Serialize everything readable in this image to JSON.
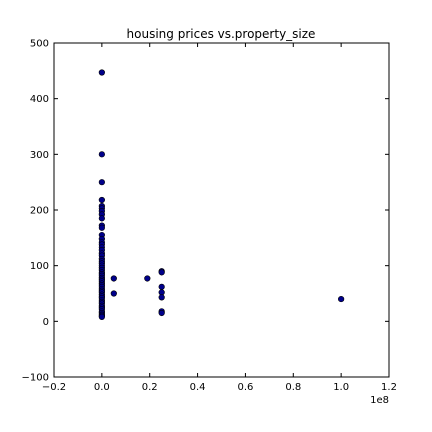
{
  "chart_data": {
    "type": "scatter",
    "title": "housing prices vs.property_size",
    "xlabel": "",
    "ylabel": "",
    "x_offset_label": "1e8",
    "xlim": [
      -0.2,
      1.2
    ],
    "ylim": [
      -100,
      500
    ],
    "x_ticks": [
      -0.2,
      0.0,
      0.2,
      0.4,
      0.6,
      0.8,
      1.0,
      1.2
    ],
    "x_tick_labels": [
      "−0.2",
      "0.0",
      "0.2",
      "0.4",
      "0.6",
      "0.8",
      "1.0",
      "1.2"
    ],
    "y_ticks": [
      -100,
      0,
      100,
      200,
      300,
      400,
      500
    ],
    "y_tick_labels": [
      "−100",
      "0",
      "100",
      "200",
      "300",
      "400",
      "500"
    ],
    "grid": false,
    "marker_color": "#00008b",
    "series": [
      {
        "points": [
          [
            0.0,
            447
          ],
          [
            0.0,
            300
          ],
          [
            0.0,
            250
          ],
          [
            0.0,
            218
          ],
          [
            0.0,
            207
          ],
          [
            0.0,
            203
          ],
          [
            0.0,
            198
          ],
          [
            0.0,
            192
          ],
          [
            0.0,
            185
          ],
          [
            0.0,
            172
          ],
          [
            0.0,
            168
          ],
          [
            0.0,
            155
          ],
          [
            0.0,
            148
          ],
          [
            0.0,
            142
          ],
          [
            0.0,
            138
          ],
          [
            0.0,
            133
          ],
          [
            0.0,
            128
          ],
          [
            0.0,
            122
          ],
          [
            0.0,
            118
          ],
          [
            0.0,
            112
          ],
          [
            0.0,
            108
          ],
          [
            0.0,
            104
          ],
          [
            0.0,
            100
          ],
          [
            0.0,
            96
          ],
          [
            0.0,
            92
          ],
          [
            0.0,
            88
          ],
          [
            0.0,
            85
          ],
          [
            0.0,
            82
          ],
          [
            0.0,
            78
          ],
          [
            0.0,
            75
          ],
          [
            0.0,
            72
          ],
          [
            0.0,
            68
          ],
          [
            0.0,
            65
          ],
          [
            0.0,
            62
          ],
          [
            0.0,
            58
          ],
          [
            0.0,
            55
          ],
          [
            0.0,
            52
          ],
          [
            0.0,
            48
          ],
          [
            0.0,
            45
          ],
          [
            0.0,
            42
          ],
          [
            0.0,
            38
          ],
          [
            0.0,
            35
          ],
          [
            0.0,
            32
          ],
          [
            0.0,
            28
          ],
          [
            0.0,
            25
          ],
          [
            0.0,
            22
          ],
          [
            0.0,
            18
          ],
          [
            0.0,
            15
          ],
          [
            0.0,
            12
          ],
          [
            0.0,
            10
          ],
          [
            0.0,
            8
          ],
          [
            0.05,
            77
          ],
          [
            0.05,
            50
          ],
          [
            0.19,
            77
          ],
          [
            0.25,
            90
          ],
          [
            0.25,
            88
          ],
          [
            0.25,
            62
          ],
          [
            0.25,
            52
          ],
          [
            0.25,
            43
          ],
          [
            0.25,
            18
          ],
          [
            0.25,
            15
          ],
          [
            1.0,
            40
          ]
        ]
      }
    ]
  }
}
